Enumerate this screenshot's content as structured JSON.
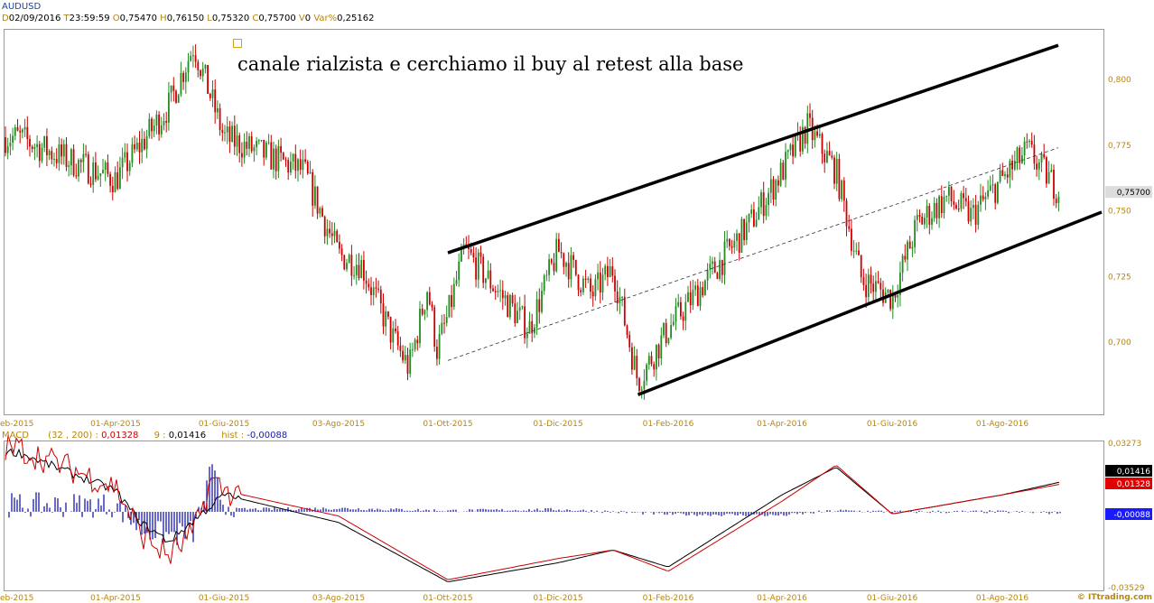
{
  "symbol": "AUDUSD",
  "quote": {
    "d_label": "D",
    "date": "02/09/2016",
    "t_label": "T",
    "time": "23:59:59",
    "o_label": "O",
    "open": "0,75470",
    "h_label": "H",
    "high": "0,76150",
    "l_label": "L",
    "low": "0,75320",
    "c_label": "C",
    "close": "0,75700",
    "v_label": "V",
    "volume": "0",
    "var_label": "Var%",
    "var": "0,25162"
  },
  "annotation": "canale rialzista e cerchiamo il buy al retest alla base",
  "macd_header": {
    "name": "MACD",
    "params": "(32 , 200)",
    "macd_value": "0,01328",
    "signal_label": "9",
    "signal_value": "0,01416",
    "hist_label": "hist",
    "hist_value": "-0,00088"
  },
  "watermark": "© ITtrading.com",
  "colors": {
    "bull": "#228B22",
    "bear": "#cc0000",
    "channel": "#000000",
    "midline": "#333333",
    "macd": "#cc0000",
    "signal": "#000000",
    "hist": "#1a1aa8",
    "axis_text": "#b8860b",
    "price_tag": "#dcdcdc"
  },
  "chart_data": [
    {
      "type": "candlestick",
      "title": "AUDUSD",
      "x_tick_labels": [
        "eb-2015",
        "01-Apr-2015",
        "01-Giu-2015",
        "03-Ago-2015",
        "01-Ott-2015",
        "01-Dic-2015",
        "01-Feb-2016",
        "01-Apr-2016",
        "01-Giu-2016",
        "01-Ago-2016"
      ],
      "y_tick_labels": [
        "0,800",
        "0,775",
        "0,750",
        "0,725",
        "0,700"
      ],
      "ylim": [
        0.675,
        0.82
      ],
      "last_price_label": "0,75700",
      "price_path": [
        {
          "x": "eb-2015",
          "y": 0.778
        },
        {
          "x": "01-Mar-2015",
          "y": 0.77
        },
        {
          "x": "01-Apr-2015",
          "y": 0.762
        },
        {
          "x": "15-Apr-2015",
          "y": 0.775
        },
        {
          "x": "01-May-2015",
          "y": 0.79
        },
        {
          "x": "15-May-2015",
          "y": 0.813
        },
        {
          "x": "01-Giu-2015",
          "y": 0.778
        },
        {
          "x": "15-Jul-2015",
          "y": 0.765
        },
        {
          "x": "03-Ago-2015",
          "y": 0.733
        },
        {
          "x": "15-Ago-2015",
          "y": 0.73
        },
        {
          "x": "01-Sep-2015",
          "y": 0.702
        },
        {
          "x": "10-Sep-2015",
          "y": 0.69
        },
        {
          "x": "20-Sep-2015",
          "y": 0.721
        },
        {
          "x": "25-Sep-2015",
          "y": 0.697
        },
        {
          "x": "01-Ott-2015",
          "y": 0.71
        },
        {
          "x": "10-Ott-2015",
          "y": 0.735
        },
        {
          "x": "15-Nov-2015",
          "y": 0.705
        },
        {
          "x": "01-Dic-2015",
          "y": 0.735
        },
        {
          "x": "20-Dic-2015",
          "y": 0.718
        },
        {
          "x": "01-Gen-2016",
          "y": 0.728
        },
        {
          "x": "15-Gen-2016",
          "y": 0.685
        },
        {
          "x": "01-Feb-2016",
          "y": 0.705
        },
        {
          "x": "15-Mar-2016",
          "y": 0.745
        },
        {
          "x": "01-Apr-2016",
          "y": 0.765
        },
        {
          "x": "15-Apr-2016",
          "y": 0.782
        },
        {
          "x": "01-May-2016",
          "y": 0.765
        },
        {
          "x": "15-May-2016",
          "y": 0.724
        },
        {
          "x": "01-Giu-2016",
          "y": 0.717
        },
        {
          "x": "15-Giu-2016",
          "y": 0.745
        },
        {
          "x": "01-Jul-2016",
          "y": 0.755
        },
        {
          "x": "15-Jul-2016",
          "y": 0.748
        },
        {
          "x": "01-Ago-2016",
          "y": 0.762
        },
        {
          "x": "15-Ago-2016",
          "y": 0.773
        },
        {
          "x": "02-Set-2016",
          "y": 0.757
        }
      ],
      "channel": {
        "upper": [
          {
            "x": "01-Ott-2015",
            "y": 0.734
          },
          {
            "x": "01-Set-2016",
            "y": 0.813
          }
        ],
        "lower": [
          {
            "x": "15-Gen-2016",
            "y": 0.68
          },
          {
            "x": "01-Set-2016",
            "y": 0.743
          }
        ],
        "midline": [
          {
            "x": "01-Ott-2015",
            "y": 0.693
          },
          {
            "x": "01-Set-2016",
            "y": 0.774
          }
        ]
      }
    },
    {
      "type": "line",
      "title": "MACD",
      "y_tick_labels": [
        "0,03273",
        "-0,03529"
      ],
      "ylim": [
        -0.03529,
        0.03273
      ],
      "value_tags": [
        "0,01416",
        "0,01328",
        "-0,00088"
      ],
      "series": [
        {
          "name": "MACD",
          "values": [
            {
              "x": "eb-2015",
              "y": 0.03
            },
            {
              "x": "01-Apr-2015",
              "y": 0.012
            },
            {
              "x": "15-Apr-2015",
              "y": -0.01
            },
            {
              "x": "01-May-2015",
              "y": -0.021
            },
            {
              "x": "15-May-2015",
              "y": -0.01
            },
            {
              "x": "25-May-2015",
              "y": 0.015
            },
            {
              "x": "01-Giu-2015",
              "y": 0.01
            },
            {
              "x": "03-Ago-2015",
              "y": -0.002
            },
            {
              "x": "01-Ott-2015",
              "y": -0.032
            },
            {
              "x": "01-Dic-2015",
              "y": -0.022
            },
            {
              "x": "01-Gen-2016",
              "y": -0.018
            },
            {
              "x": "01-Feb-2016",
              "y": -0.028
            },
            {
              "x": "01-Apr-2016",
              "y": 0.005
            },
            {
              "x": "01-May-2016",
              "y": 0.022
            },
            {
              "x": "01-Giu-2016",
              "y": -0.001
            },
            {
              "x": "01-Ago-2016",
              "y": 0.008
            },
            {
              "x": "02-Set-2016",
              "y": 0.013
            }
          ]
        },
        {
          "name": "9",
          "values": [
            {
              "x": "eb-2015",
              "y": 0.028
            },
            {
              "x": "01-Apr-2015",
              "y": 0.01
            },
            {
              "x": "15-Apr-2015",
              "y": -0.005
            },
            {
              "x": "01-May-2015",
              "y": -0.014
            },
            {
              "x": "01-Giu-2015",
              "y": 0.008
            },
            {
              "x": "03-Ago-2015",
              "y": -0.005
            },
            {
              "x": "01-Ott-2015",
              "y": -0.033
            },
            {
              "x": "01-Dic-2015",
              "y": -0.024
            },
            {
              "x": "01-Gen-2016",
              "y": -0.018
            },
            {
              "x": "01-Feb-2016",
              "y": -0.026
            },
            {
              "x": "01-Apr-2016",
              "y": 0.008
            },
            {
              "x": "01-May-2016",
              "y": 0.021
            },
            {
              "x": "01-Giu-2016",
              "y": -0.001
            },
            {
              "x": "01-Ago-2016",
              "y": 0.008
            },
            {
              "x": "02-Set-2016",
              "y": 0.014
            }
          ]
        }
      ],
      "histogram": {
        "name": "hist",
        "last": -0.00088
      }
    }
  ]
}
